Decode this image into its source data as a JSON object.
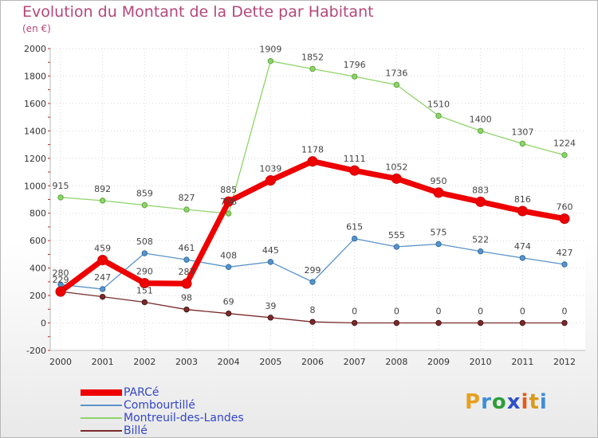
{
  "chart_data": {
    "type": "line",
    "title": "Evolution du Montant de la Dette par Habitant",
    "subtitle": "(en €)",
    "x": [
      "2000",
      "2001",
      "2002",
      "2003",
      "2004",
      "2005",
      "2006",
      "2007",
      "2008",
      "2009",
      "2010",
      "2011",
      "2012"
    ],
    "ylim": [
      -200,
      2000
    ],
    "yticks": [
      -200,
      0,
      200,
      400,
      600,
      800,
      1000,
      1200,
      1400,
      1600,
      1800,
      2000
    ],
    "grid": true,
    "legend_position": "bottom-left",
    "series": [
      {
        "name": "PARCé",
        "color": "#ee0000",
        "values": [
          229,
          459,
          290,
          287,
          885,
          1039,
          1178,
          1111,
          1052,
          950,
          883,
          816,
          760
        ],
        "labels": [
          "229",
          "459",
          "290",
          "287",
          "885",
          "1039",
          "1178",
          "1111",
          "1052",
          "950",
          "883",
          "816",
          "760"
        ]
      },
      {
        "name": "Combourtillé",
        "color": "#5a93c8",
        "values": [
          280,
          247,
          508,
          461,
          408,
          445,
          299,
          615,
          555,
          575,
          522,
          474,
          427
        ],
        "labels": [
          "280",
          "247",
          "508",
          "461",
          "408",
          "445",
          "299",
          "615",
          "555",
          "575",
          "522",
          "474",
          "427"
        ]
      },
      {
        "name": "Montreuil-des-Landes",
        "color": "#8fd46a",
        "values": [
          915,
          892,
          859,
          827,
          798,
          1909,
          1852,
          1796,
          1736,
          1510,
          1400,
          1307,
          1224
        ],
        "labels": [
          "915",
          "892",
          "859",
          "827",
          "798",
          "1909",
          "1852",
          "1796",
          "1736",
          "1510",
          "1400",
          "1307",
          "1224"
        ]
      },
      {
        "name": "Billé",
        "color": "#7a2a2a",
        "values": [
          229,
          191,
          151,
          98,
          69,
          39,
          8,
          0,
          0,
          0,
          0,
          0,
          0
        ],
        "labels": [
          "",
          "",
          "151",
          "98",
          "69",
          "39",
          "8",
          "0",
          "0",
          "0",
          "0",
          "0",
          "0"
        ]
      }
    ]
  },
  "brand": {
    "letters": [
      "P",
      "r",
      "o",
      "x",
      "i",
      "t",
      "i"
    ],
    "colors": [
      "#e8a020",
      "#3d8ed8",
      "#2e9e3a",
      "#2e4fc8",
      "#e85a18",
      "#d89b1c",
      "#3d8ed8"
    ]
  }
}
